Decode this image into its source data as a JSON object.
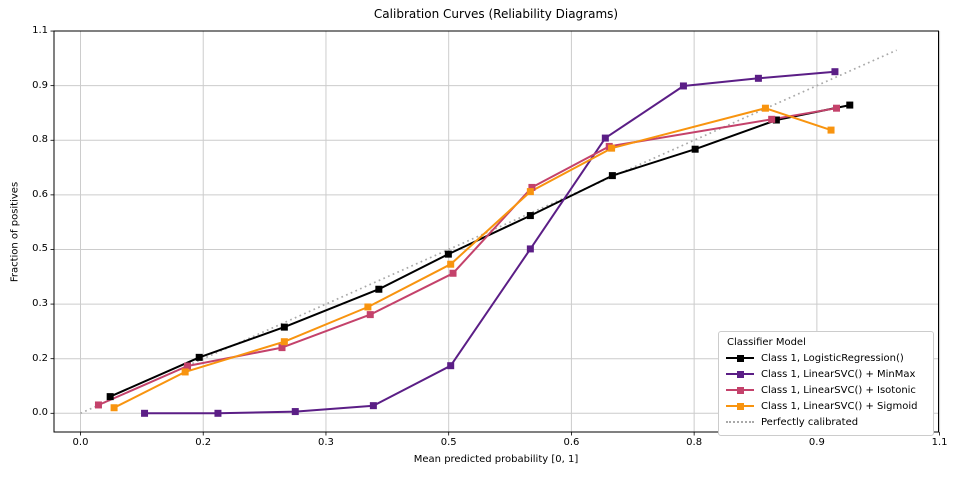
{
  "chart_data": {
    "type": "line",
    "title": "Calibration Curves (Reliability Diagrams)",
    "xlabel": "Mean predicted probability [0, 1]",
    "ylabel": "Fraction of positives",
    "xlim": [
      -0.034,
      1.099
    ],
    "ylim": [
      -0.054,
      1.1
    ],
    "grid": true,
    "grid_color": "#cccccc",
    "axis_color": "#000000",
    "tick_values": [
      0.0,
      0.15714,
      0.31429,
      0.47143,
      0.62857,
      0.78571,
      0.94286,
      1.1
    ],
    "x_tick_labels": [
      "0.0",
      "0.2",
      "0.3",
      "0.5",
      "0.6",
      "0.8",
      "0.9",
      "1.1"
    ],
    "y_tick_labels": [
      "0.0",
      "0.2",
      "0.3",
      "0.5",
      "0.6",
      "0.8",
      "0.9",
      "1.1"
    ],
    "series": [
      {
        "name": "Class 1, LogisticRegression()",
        "color": "#000000",
        "marker": "square",
        "x": [
          0.038,
          0.152,
          0.261,
          0.382,
          0.471,
          0.576,
          0.681,
          0.787,
          0.891,
          0.985
        ],
        "y": [
          0.048,
          0.161,
          0.248,
          0.357,
          0.458,
          0.569,
          0.684,
          0.76,
          0.844,
          0.887
        ]
      },
      {
        "name": "Class 1, LinearSVC() + MinMax",
        "color": "#5b1e86",
        "marker": "square",
        "x": [
          0.082,
          0.176,
          0.275,
          0.375,
          0.474,
          0.576,
          0.672,
          0.772,
          0.868,
          0.966
        ],
        "y": [
          0.0,
          0.0,
          0.005,
          0.022,
          0.137,
          0.473,
          0.792,
          0.942,
          0.964,
          0.983
        ]
      },
      {
        "name": "Class 1, LinearSVC() + Isotonic",
        "color": "#c4426b",
        "marker": "square",
        "x": [
          0.023,
          0.137,
          0.258,
          0.371,
          0.477,
          0.578,
          0.677,
          0.885,
          0.968
        ],
        "y": [
          0.024,
          0.136,
          0.189,
          0.284,
          0.403,
          0.65,
          0.768,
          0.846,
          0.878
        ]
      },
      {
        "name": "Class 1, LinearSVC() + Sigmoid",
        "color": "#f8940f",
        "marker": "square",
        "x": [
          0.043,
          0.134,
          0.261,
          0.368,
          0.474,
          0.576,
          0.68,
          0.877,
          0.961
        ],
        "y": [
          0.016,
          0.119,
          0.206,
          0.306,
          0.429,
          0.638,
          0.763,
          0.878,
          0.815
        ]
      }
    ],
    "reference_line": {
      "name": "Perfectly calibrated",
      "color": "#a9a9a9",
      "style": "dotted",
      "x": [
        0.0,
        1.045
      ],
      "y": [
        0.0,
        1.045
      ]
    },
    "legend": {
      "title": "Classifier Model",
      "position": "lower right"
    }
  }
}
